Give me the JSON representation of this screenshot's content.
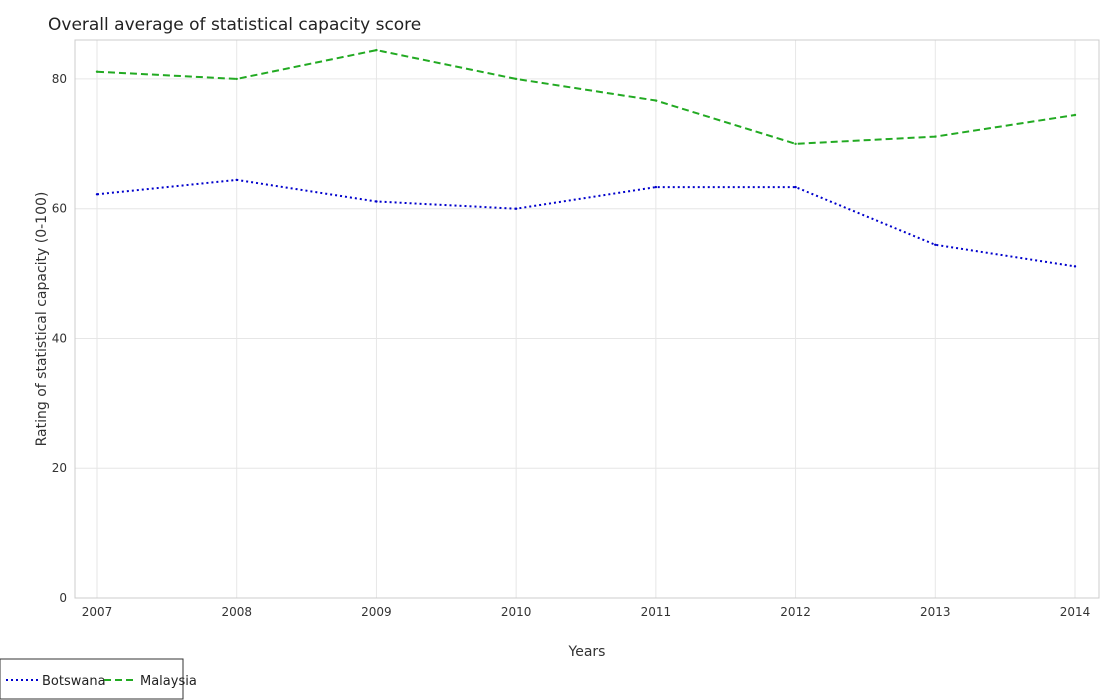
{
  "chart_data": {
    "type": "line",
    "title": "Overall average of statistical capacity score",
    "xlabel": "Years",
    "ylabel": "Rating of statistical capacity (0-100)",
    "categories": [
      "2007",
      "2008",
      "2009",
      "2010",
      "2011",
      "2012",
      "2013",
      "2014"
    ],
    "yticks": [
      0,
      20,
      40,
      60,
      80
    ],
    "ylim": [
      0,
      86
    ],
    "grid": true,
    "legend_position": "bottom-left",
    "series": [
      {
        "name": "Botswana",
        "color": "#0000cc",
        "dash": "dotted",
        "values": [
          62.22,
          64.44,
          61.11,
          60.0,
          63.33,
          63.33,
          54.44,
          51.11
        ]
      },
      {
        "name": "Malaysia",
        "color": "#22aa22",
        "dash": "dashed",
        "values": [
          81.11,
          80.0,
          84.44,
          80.0,
          76.67,
          70.0,
          71.11,
          74.44
        ]
      }
    ]
  }
}
